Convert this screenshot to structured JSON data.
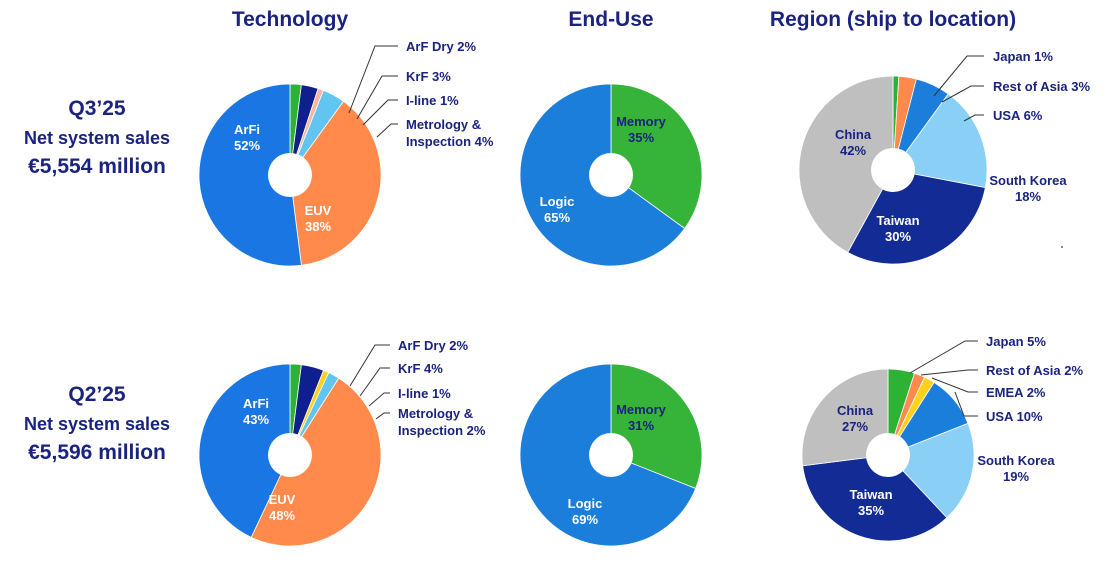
{
  "titles": {
    "technology": "Technology",
    "end_use": "End-Use",
    "region": "Region (ship to location)"
  },
  "periods": [
    {
      "label": "Q3’25",
      "subtitle": "Net system sales",
      "amount": "€5,554 million"
    },
    {
      "label": "Q2’25",
      "subtitle": "Net system sales",
      "amount": "€5,596 million"
    }
  ],
  "colors": {
    "arfi": "#1976e2",
    "euv": "#ff8a4c",
    "arf_dry": "#2eb135",
    "krf": "#0f1f8e",
    "iline": "#f7b7a0",
    "iline_q2": "#ffd11a",
    "metrology": "#62c4f0",
    "memory": "#36b43a",
    "logic": "#1b7edb",
    "china": "#bfbfbf",
    "taiwan": "#132b94",
    "south_korea": "#8acff5",
    "usa": "#1b7edb",
    "rest_of_asia": "#ff8a4c",
    "japan": "#2eb135",
    "emea": "#ffd11a",
    "label_dark": "#1a237e",
    "label_light": "#ffffff"
  },
  "chart_data": [
    {
      "type": "pie",
      "title": "Technology",
      "period": "Q3’25",
      "slices": [
        {
          "name": "ArF Dry",
          "value": 2,
          "color": "#2eb135",
          "label": "ArF Dry 2%"
        },
        {
          "name": "KrF",
          "value": 3,
          "color": "#0f1f8e",
          "label": "KrF 3%"
        },
        {
          "name": "I-line",
          "value": 1,
          "color": "#f7b7a0",
          "label": "I-line 1%"
        },
        {
          "name": "Metrology & Inspection",
          "value": 4,
          "color": "#62c4f0",
          "label": "Metrology &\nInspection 4%"
        },
        {
          "name": "EUV",
          "value": 38,
          "color": "#ff8a4c",
          "label": "EUV\n38%"
        },
        {
          "name": "ArFi",
          "value": 52,
          "color": "#1976e2",
          "label": "ArFi\n52%"
        }
      ]
    },
    {
      "type": "pie",
      "title": "End-Use",
      "period": "Q3’25",
      "slices": [
        {
          "name": "Memory",
          "value": 35,
          "color": "#36b43a",
          "label": "Memory\n35%"
        },
        {
          "name": "Logic",
          "value": 65,
          "color": "#1b7edb",
          "label": "Logic\n65%"
        }
      ]
    },
    {
      "type": "pie",
      "title": "Region (ship to location)",
      "period": "Q3’25",
      "slices": [
        {
          "name": "Japan",
          "value": 1,
          "color": "#2eb135",
          "label": "Japan 1%"
        },
        {
          "name": "Rest of Asia",
          "value": 3,
          "color": "#ff8a4c",
          "label": "Rest of Asia 3%"
        },
        {
          "name": "USA",
          "value": 6,
          "color": "#1b7edb",
          "label": "USA 6%"
        },
        {
          "name": "South Korea",
          "value": 18,
          "color": "#8acff5",
          "label": "South Korea\n18%"
        },
        {
          "name": "Taiwan",
          "value": 30,
          "color": "#132b94",
          "label": "Taiwan\n30%"
        },
        {
          "name": "China",
          "value": 42,
          "color": "#bfbfbf",
          "label": "China\n42%"
        }
      ]
    },
    {
      "type": "pie",
      "title": "Technology",
      "period": "Q2’25",
      "slices": [
        {
          "name": "ArF Dry",
          "value": 2,
          "color": "#2eb135",
          "label": "ArF Dry 2%"
        },
        {
          "name": "KrF",
          "value": 4,
          "color": "#0f1f8e",
          "label": "KrF 4%"
        },
        {
          "name": "I-line",
          "value": 1,
          "color": "#ffd11a",
          "label": "I-line 1%"
        },
        {
          "name": "Metrology & Inspection",
          "value": 2,
          "color": "#62c4f0",
          "label": "Metrology &\nInspection 2%"
        },
        {
          "name": "EUV",
          "value": 48,
          "color": "#ff8a4c",
          "label": "EUV\n48%"
        },
        {
          "name": "ArFi",
          "value": 43,
          "color": "#1976e2",
          "label": "ArFi\n43%"
        }
      ]
    },
    {
      "type": "pie",
      "title": "End-Use",
      "period": "Q2’25",
      "slices": [
        {
          "name": "Memory",
          "value": 31,
          "color": "#36b43a",
          "label": "Memory\n31%"
        },
        {
          "name": "Logic",
          "value": 69,
          "color": "#1b7edb",
          "label": "Logic\n69%"
        }
      ]
    },
    {
      "type": "pie",
      "title": "Region (ship to location)",
      "period": "Q2’25",
      "slices": [
        {
          "name": "Japan",
          "value": 5,
          "color": "#2eb135",
          "label": "Japan 5%"
        },
        {
          "name": "Rest of Asia",
          "value": 2,
          "color": "#ff8a4c",
          "label": "Rest of Asia 2%"
        },
        {
          "name": "EMEA",
          "value": 2,
          "color": "#ffd11a",
          "label": "EMEA 2%"
        },
        {
          "name": "USA",
          "value": 10,
          "color": "#1b7edb",
          "label": "USA 10%"
        },
        {
          "name": "South Korea",
          "value": 19,
          "color": "#8acff5",
          "label": "South Korea\n19%"
        },
        {
          "name": "Taiwan",
          "value": 35,
          "color": "#132b94",
          "label": "Taiwan\n35%"
        },
        {
          "name": "China",
          "value": 27,
          "color": "#bfbfbf",
          "label": "China\n27%"
        }
      ]
    }
  ]
}
